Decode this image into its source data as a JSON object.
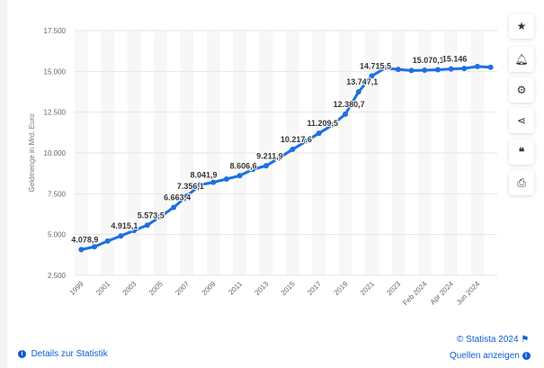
{
  "chart_data": {
    "type": "line",
    "ylabel": "Geldmenge in Mrd. Euro",
    "ylim": [
      2500,
      17500
    ],
    "yticks": [
      2500,
      5000,
      7500,
      10000,
      12500,
      15000,
      17500
    ],
    "ytick_labels": [
      "2.500",
      "5.000",
      "7.500",
      "10.000",
      "12.500",
      "15.000",
      "17.500"
    ],
    "x": [
      "1999",
      "2000",
      "2001",
      "2002",
      "2003",
      "2004",
      "2005",
      "2006",
      "2007",
      "2008",
      "2009",
      "2010",
      "2011",
      "2012",
      "2013",
      "2014",
      "2015",
      "2016",
      "2017",
      "2018",
      "2019",
      "2020",
      "2021",
      "2022",
      "2023",
      "Jan 2024",
      "Feb 2024",
      "Mar 2024",
      "Apr 2024",
      "May 2024",
      "Jun 2024",
      "Jul 2024"
    ],
    "xtick_labels": [
      "1999",
      "",
      "2001",
      "",
      "2003",
      "",
      "2005",
      "",
      "2007",
      "",
      "2009",
      "",
      "2011",
      "",
      "2013",
      "",
      "2015",
      "",
      "2017",
      "",
      "2019",
      "",
      "2021",
      "",
      "2023",
      "",
      "Feb 2024",
      "",
      "Apr 2024",
      "",
      "Jun 2024",
      ""
    ],
    "values": [
      4078.9,
      4250,
      4600,
      4915.1,
      5250,
      5573.5,
      6100,
      6663.4,
      7356.1,
      8041.9,
      8200,
      8400,
      8606.6,
      9000,
      9211.9,
      9700,
      10217.6,
      10700,
      11209.5,
      11700,
      12380.7,
      13747.1,
      14715.5,
      15200,
      15120,
      15050,
      15070.1,
      15100,
      15146,
      15180,
      15300,
      15250
    ],
    "data_labels": [
      "4.078,9",
      "",
      "",
      "4.915,1",
      "",
      "5.573,5",
      "",
      "6.663,4",
      "7.356,1",
      "8.041,9",
      "",
      "",
      "8.606,6",
      "",
      "9.211,9",
      "",
      "10.217,6",
      "",
      "11.209,5",
      "",
      "12.380,7",
      "13.747,1",
      "14.715,5",
      "",
      "",
      "",
      "15.070,1",
      "",
      "15.146",
      "",
      "",
      ""
    ],
    "color": "#1f6fe0",
    "grid": true
  },
  "sidebar": {
    "icons": [
      "star-icon",
      "bell-icon",
      "gear-icon",
      "share-icon",
      "quote-icon",
      "print-icon"
    ]
  },
  "footer": {
    "details": "Details zur Statistik",
    "copyright": "© Statista 2024",
    "sources": "Quellen anzeigen"
  }
}
